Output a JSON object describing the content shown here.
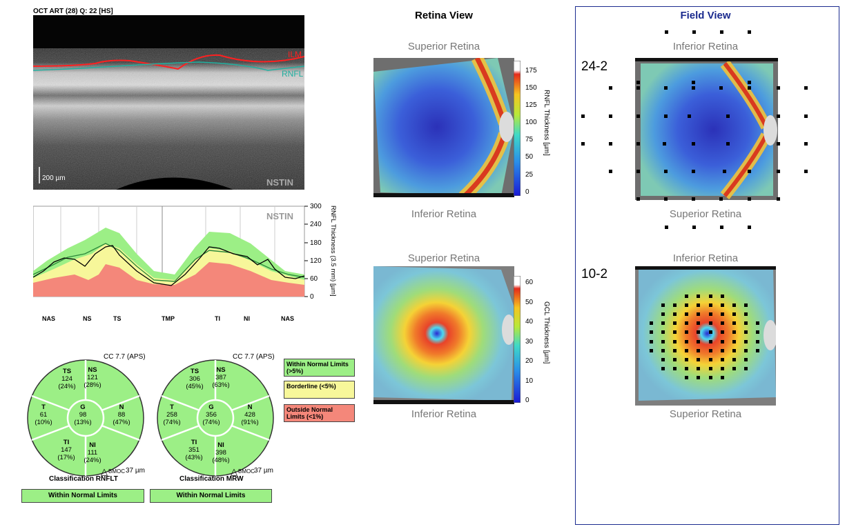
{
  "header": {
    "scan_info": "OCT ART (28) Q: 22 [HS]"
  },
  "bscan": {
    "scale_label": "200 µm",
    "orientation": "NSTIN",
    "ilm_label": "ILM",
    "rnfl_label": "RNFL"
  },
  "profile": {
    "orientation": "NSTIN",
    "ylabel": "RNFL Thickness (3.5 mm) [µm]",
    "yticks": [
      "300",
      "240",
      "180",
      "120",
      "60",
      "0"
    ],
    "xlabels": [
      "NAS",
      "NS",
      "TS",
      "TMP",
      "TI",
      "NI",
      "NAS"
    ]
  },
  "rnflt_circle": {
    "cc": "CC 7.7 (APS)",
    "TS": {
      "name": "TS",
      "value": "124",
      "pct": "(24%)"
    },
    "NS": {
      "name": "NS",
      "value": "121",
      "pct": "(28%)"
    },
    "T": {
      "name": "T",
      "value": "61",
      "pct": "(10%)"
    },
    "G": {
      "name": "G",
      "value": "98",
      "pct": "(13%)"
    },
    "N": {
      "name": "N",
      "value": "88",
      "pct": "(47%)"
    },
    "TI": {
      "name": "TI",
      "value": "147",
      "pct": "(17%)"
    },
    "NI": {
      "name": "NI",
      "value": "111",
      "pct": "(24%)"
    },
    "bmoc_prefix": "BMOC",
    "bmoc_value": "37 µm",
    "classification": "Classification RNFLT",
    "result": "Within Normal Limits"
  },
  "mrw_circle": {
    "cc": "CC 7.7 (APS)",
    "TS": {
      "name": "TS",
      "value": "306",
      "pct": "(45%)"
    },
    "NS": {
      "name": "NS",
      "value": "387",
      "pct": "(63%)"
    },
    "T": {
      "name": "T",
      "value": "258",
      "pct": "(74%)"
    },
    "G": {
      "name": "G",
      "value": "356",
      "pct": "(74%)"
    },
    "N": {
      "name": "N",
      "value": "428",
      "pct": "(91%)"
    },
    "TI": {
      "name": "TI",
      "value": "351",
      "pct": "(43%)"
    },
    "NI": {
      "name": "NI",
      "value": "398",
      "pct": "(48%)"
    },
    "bmoc_prefix": "BMOC",
    "bmoc_value": "37 µm",
    "classification": "Classification MRW",
    "result": "Within Normal Limits"
  },
  "legend": {
    "wnl": "Within Normal Limits (>5%)",
    "bl": "Borderline (<5%)",
    "onl": "Outside Normal Limits (<1%)",
    "colors": {
      "wnl": "#9cef86",
      "bl": "#f7f79a",
      "onl": "#f4877a"
    }
  },
  "retina_view": {
    "title": "Retina View",
    "top1": "Superior Retina",
    "bottom1": "Inferior Retina",
    "top2": "Superior Retina",
    "bottom2": "Inferior Retina",
    "cb1_label": "RNFL Thickness [µm]",
    "cb1_ticks": [
      "175",
      "150",
      "125",
      "100",
      "75",
      "50",
      "25",
      "0"
    ],
    "cb2_label": "GCL Thickness [µm]",
    "cb2_ticks": [
      "60",
      "50",
      "40",
      "30",
      "20",
      "10",
      "0"
    ]
  },
  "field_view": {
    "title": "Field View",
    "top1": "Inferior Retina",
    "bottom1": "Superior Retina",
    "top2": "Inferior Retina",
    "bottom2": "Superior Retina",
    "label1": "24-2",
    "label2": "10-2"
  }
}
